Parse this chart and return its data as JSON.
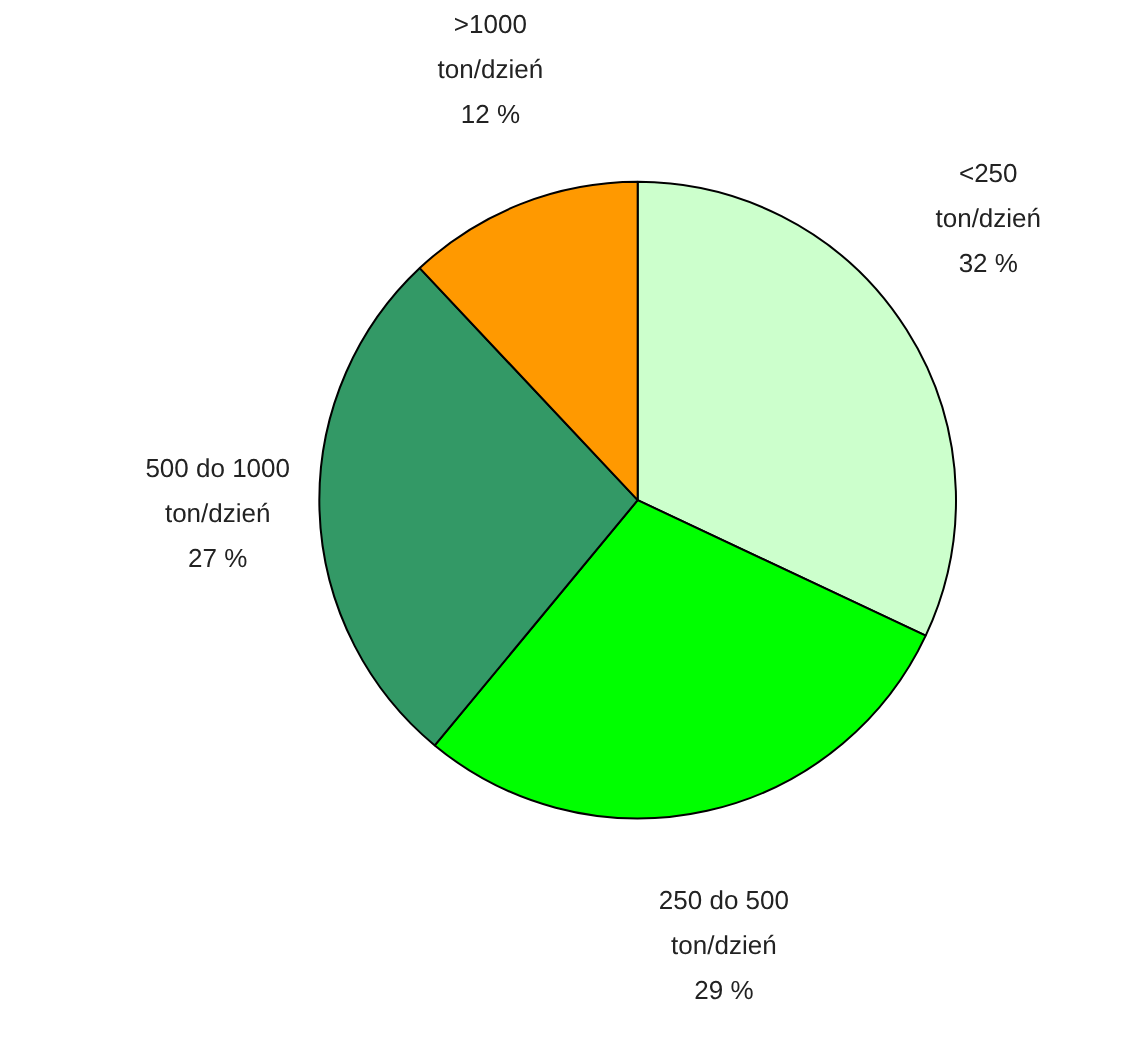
{
  "chart_data": {
    "type": "pie",
    "categories": [
      "<250 ton/dzień",
      "250 do 500 ton/dzień",
      "500 do 1000 ton/dzień",
      ">1000 ton/dzień"
    ],
    "values": [
      32,
      29,
      27,
      12
    ],
    "value_labels": [
      "32 %",
      "29 %",
      "27 %",
      "12 %"
    ],
    "colors": [
      "#ccffcc",
      "#00ff00",
      "#339966",
      "#ff9900"
    ]
  }
}
